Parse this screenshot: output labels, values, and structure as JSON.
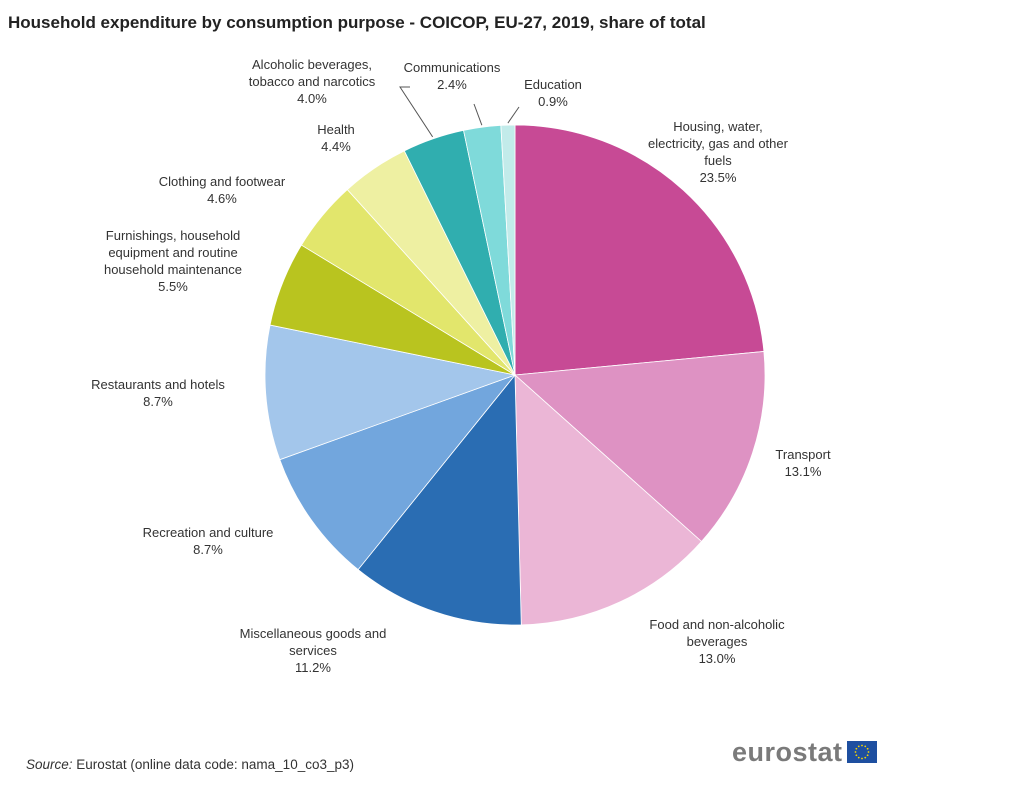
{
  "title": "Household expenditure by consumption purpose - COICOP, EU-27, 2019, share of total",
  "source": {
    "label": "Source:",
    "text": "Eurostat (online data code: nama_10_co3_p3)"
  },
  "logo": {
    "text": "eurostat"
  },
  "chart_data": {
    "type": "pie",
    "unit": "%",
    "start_angle_deg": 0,
    "direction": "clockwise",
    "slices": [
      {
        "label": "Housing, water, electricity, gas and other fuels",
        "label_lines": [
          "Housing, water,",
          "electricity, gas and other",
          "fuels"
        ],
        "value": 23.5,
        "value_text": "23.5%",
        "color": "#c74a95"
      },
      {
        "label": "Transport",
        "label_lines": [
          "Transport"
        ],
        "value": 13.1,
        "value_text": "13.1%",
        "color": "#de92c3"
      },
      {
        "label": "Food and non-alcoholic beverages",
        "label_lines": [
          "Food and non-alcoholic",
          "beverages"
        ],
        "value": 13.0,
        "value_text": "13.0%",
        "color": "#ebb6d6"
      },
      {
        "label": "Miscellaneous goods and services",
        "label_lines": [
          "Miscellaneous goods and",
          "services"
        ],
        "value": 11.2,
        "value_text": "11.2%",
        "color": "#2a6db3"
      },
      {
        "label": "Recreation and culture",
        "label_lines": [
          "Recreation and culture"
        ],
        "value": 8.7,
        "value_text": "8.7%",
        "color": "#72a6dd"
      },
      {
        "label": "Restaurants and hotels",
        "label_lines": [
          "Restaurants and hotels"
        ],
        "value": 8.7,
        "value_text": "8.7%",
        "color": "#a3c6eb"
      },
      {
        "label": "Furnishings, household equipment and routine household maintenance",
        "label_lines": [
          "Furnishings, household",
          "equipment and routine",
          "household maintenance"
        ],
        "value": 5.5,
        "value_text": "5.5%",
        "color": "#b9c41f"
      },
      {
        "label": "Clothing and footwear",
        "label_lines": [
          "Clothing and footwear"
        ],
        "value": 4.6,
        "value_text": "4.6%",
        "color": "#e2e66c"
      },
      {
        "label": "Health",
        "label_lines": [
          "Health"
        ],
        "value": 4.4,
        "value_text": "4.4%",
        "color": "#eef0a2"
      },
      {
        "label": "Alcoholic beverages, tobacco and narcotics",
        "label_lines": [
          "Alcoholic beverages,",
          "tobacco and narcotics"
        ],
        "value": 4.0,
        "value_text": "4.0%",
        "color": "#30aeaf"
      },
      {
        "label": "Communications",
        "label_lines": [
          "Communications"
        ],
        "value": 2.4,
        "value_text": "2.4%",
        "color": "#7fdada"
      },
      {
        "label": "Education",
        "label_lines": [
          "Education"
        ],
        "value": 0.9,
        "value_text": "0.9%",
        "color": "#c2ebea"
      }
    ]
  }
}
